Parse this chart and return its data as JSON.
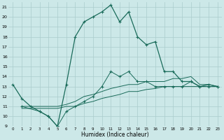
{
  "xlabel": "Humidex (Indice chaleur)",
  "bg_color": "#cce8e8",
  "grid_color": "#aacccc",
  "line_color": "#1a6b5a",
  "xlim": [
    -0.5,
    23.5
  ],
  "ylim": [
    9,
    21.5
  ],
  "xticks": [
    0,
    1,
    2,
    3,
    4,
    5,
    6,
    7,
    8,
    9,
    10,
    11,
    12,
    13,
    14,
    15,
    16,
    17,
    18,
    19,
    20,
    21,
    22,
    23
  ],
  "yticks": [
    9,
    10,
    11,
    12,
    13,
    14,
    15,
    16,
    17,
    18,
    19,
    20,
    21
  ],
  "curve1_x": [
    0,
    1,
    2,
    3,
    4,
    5,
    6,
    7,
    8,
    9,
    10,
    11,
    12,
    13,
    14,
    15,
    16,
    17,
    18,
    19,
    20,
    21,
    22,
    23
  ],
  "curve1_y": [
    13.2,
    11.8,
    11.0,
    10.5,
    10.0,
    9.0,
    13.2,
    18.0,
    19.5,
    20.0,
    20.5,
    21.2,
    19.5,
    20.5,
    18.0,
    17.2,
    17.5,
    14.5,
    14.5,
    13.5,
    13.5,
    13.0,
    13.2,
    13.0
  ],
  "curve2_x": [
    1,
    3,
    4,
    5,
    6,
    7,
    8,
    9,
    10,
    11,
    12,
    13,
    14,
    15,
    16,
    17,
    18,
    19,
    20,
    21,
    22,
    23
  ],
  "curve2_y": [
    11.0,
    11.0,
    11.0,
    11.0,
    11.2,
    11.5,
    12.0,
    12.2,
    12.5,
    12.8,
    13.0,
    13.2,
    13.2,
    13.5,
    13.5,
    13.5,
    13.8,
    13.8,
    14.0,
    13.2,
    13.2,
    13.0
  ],
  "curve3_x": [
    1,
    3,
    4,
    5,
    6,
    7,
    8,
    9,
    10,
    11,
    12,
    13,
    14,
    15,
    16,
    17,
    18,
    19,
    20,
    21,
    22,
    23
  ],
  "curve3_y": [
    10.8,
    10.8,
    10.8,
    10.8,
    11.0,
    11.0,
    11.3,
    11.5,
    11.8,
    12.0,
    12.2,
    12.5,
    12.5,
    12.7,
    12.8,
    13.0,
    13.0,
    13.0,
    13.0,
    13.0,
    13.0,
    13.0
  ],
  "curve4_x": [
    1,
    3,
    4,
    5,
    6,
    7,
    8,
    9,
    10,
    11,
    12,
    13,
    14,
    15,
    16,
    17,
    18,
    19,
    20,
    21,
    22,
    23
  ],
  "curve4_y": [
    11.0,
    10.5,
    10.0,
    9.0,
    10.5,
    11.0,
    11.5,
    12.0,
    13.0,
    14.5,
    14.0,
    14.5,
    13.5,
    13.5,
    13.0,
    13.0,
    13.0,
    13.0,
    13.5,
    13.0,
    13.0,
    13.0
  ]
}
